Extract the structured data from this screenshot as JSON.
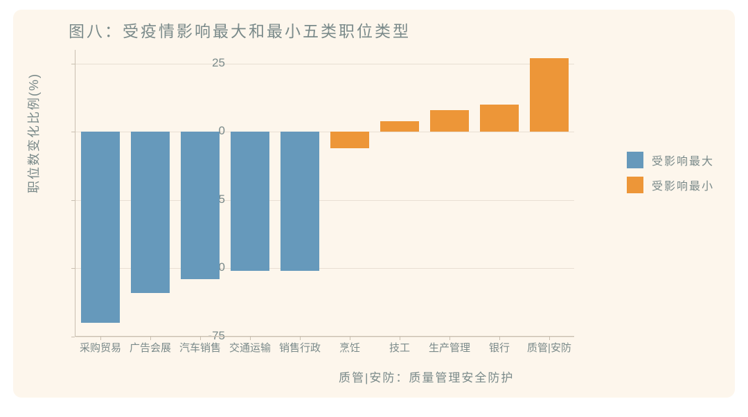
{
  "chart": {
    "type": "bar",
    "title": "图八：受疫情影响最大和最小五类职位类型",
    "y_axis_label": "职位数变化比例(%)",
    "background_color": "#fdf6ec",
    "grid_color": "#e8dfd3",
    "axis_color": "#c9bfb0",
    "text_color": "#7a8a8a",
    "title_fontsize": 23,
    "label_fontsize": 18,
    "tick_fontsize": 17,
    "x_label_fontsize": 15,
    "ylim": [
      -75,
      30
    ],
    "y_ticks": [
      -75,
      -50,
      -25,
      0,
      25
    ],
    "categories": [
      "采购贸易",
      "广告会展",
      "汽车销售",
      "交通运输",
      "销售行政",
      "烹饪",
      "技工",
      "生产管理",
      "银行",
      "质管|安防"
    ],
    "values": [
      -70,
      -59,
      -54,
      -51,
      -51,
      -6,
      4,
      8,
      10,
      27
    ],
    "series": [
      "most",
      "most",
      "most",
      "most",
      "most",
      "least",
      "least",
      "least",
      "least",
      "least"
    ],
    "series_colors": {
      "most": "#6699bb",
      "least": "#ed9638"
    },
    "bar_width_ratio": 0.78,
    "footnote": "质管|安防：质量管理安全防护",
    "legend": {
      "items": [
        {
          "label": "受影响最大",
          "color": "#6699bb"
        },
        {
          "label": "受影响最小",
          "color": "#ed9638"
        }
      ]
    }
  }
}
